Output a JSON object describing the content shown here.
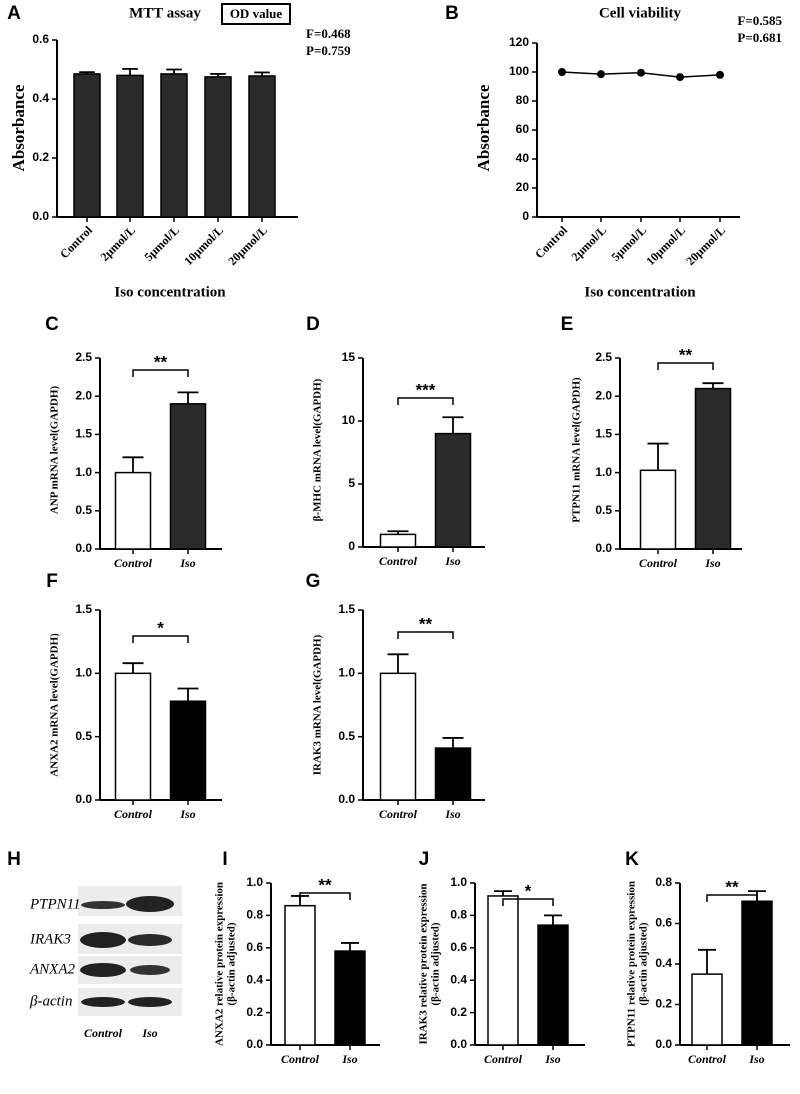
{
  "chart_data": [
    {
      "panel": "A",
      "type": "bar",
      "title": "MTT assay",
      "badge": "OD value",
      "annotations": [
        "F=0.468",
        "P=0.759"
      ],
      "categories": [
        "Control",
        "2μmol/L",
        "5μmol/L",
        "10μmol/L",
        "20μmol/L"
      ],
      "values": [
        0.485,
        0.48,
        0.485,
        0.475,
        0.478
      ],
      "errors": [
        0.006,
        0.022,
        0.015,
        0.01,
        0.012
      ],
      "colors": [
        "#2b2b2b",
        "#2b2b2b",
        "#2b2b2b",
        "#2b2b2b",
        "#2b2b2b"
      ],
      "ylabel": "Absorbance",
      "xlabel": "Iso concentration",
      "ylim": [
        0,
        0.6
      ],
      "yticks": [
        {
          "value": 0,
          "label": "0.0"
        },
        0.2,
        0.4,
        0.6
      ]
    },
    {
      "panel": "B",
      "type": "line",
      "title": "Cell viability",
      "annotations": [
        "F=0.585",
        "P=0.681"
      ],
      "categories": [
        "Control",
        "2μmol/L",
        "5μmol/L",
        "10μmol/L",
        "20μmol/L"
      ],
      "values": [
        100,
        98.5,
        99.5,
        96.5,
        98
      ],
      "color": "#000000",
      "ylabel": "Absorbance",
      "xlabel": "Iso concentration",
      "ylim": [
        0,
        120
      ],
      "yticks": [
        0,
        20,
        40,
        60,
        80,
        100,
        120
      ]
    },
    {
      "panel": "C",
      "type": "bar",
      "categories": [
        "Control",
        "Iso"
      ],
      "values": [
        1.0,
        1.9
      ],
      "errors": [
        0.2,
        0.15
      ],
      "colors": [
        "#ffffff",
        "#2b2b2b"
      ],
      "significance": "**",
      "ylabel": "ANP mRNA level(GAPDH)",
      "ylim": [
        0,
        2.5
      ],
      "yticks": [
        {
          "value": 0,
          "label": "0.0"
        },
        0.5,
        {
          "value": 1,
          "label": "1.0"
        },
        1.5,
        {
          "value": 2,
          "label": "2.0"
        },
        2.5
      ]
    },
    {
      "panel": "D",
      "type": "bar",
      "categories": [
        "Control",
        "Iso"
      ],
      "values": [
        1.0,
        9.0
      ],
      "errors": [
        0.25,
        1.3
      ],
      "colors": [
        "#ffffff",
        "#2b2b2b"
      ],
      "significance": "***",
      "ylabel": "β-MHC mRNA level(GAPDH)",
      "ylim": [
        0,
        15
      ],
      "yticks": [
        0,
        5,
        10,
        15
      ]
    },
    {
      "panel": "E",
      "type": "bar",
      "categories": [
        "Control",
        "Iso"
      ],
      "values": [
        1.03,
        2.1
      ],
      "errors": [
        0.35,
        0.07
      ],
      "colors": [
        "#ffffff",
        "#2b2b2b"
      ],
      "significance": "**",
      "ylabel": "PTPN11 mRNA level(GAPDH)",
      "ylim": [
        0,
        2.5
      ],
      "yticks": [
        {
          "value": 0,
          "label": "0.0"
        },
        0.5,
        {
          "value": 1,
          "label": "1.0"
        },
        1.5,
        {
          "value": 2,
          "label": "2.0"
        },
        2.5
      ]
    },
    {
      "panel": "F",
      "type": "bar",
      "categories": [
        "Control",
        "Iso"
      ],
      "values": [
        1.0,
        0.78
      ],
      "errors": [
        0.08,
        0.1
      ],
      "colors": [
        "#ffffff",
        "#000000"
      ],
      "significance": "*",
      "ylabel": "ANXA2 mRNA level(GAPDH)",
      "ylim": [
        0,
        1.5
      ],
      "yticks": [
        {
          "value": 0,
          "label": "0.0"
        },
        0.5,
        {
          "value": 1,
          "label": "1.0"
        },
        1.5
      ]
    },
    {
      "panel": "G",
      "type": "bar",
      "categories": [
        "Control",
        "Iso"
      ],
      "values": [
        1.0,
        0.41
      ],
      "errors": [
        0.15,
        0.08
      ],
      "colors": [
        "#ffffff",
        "#000000"
      ],
      "significance": "**",
      "ylabel": "IRAK3 mRNA level(GAPDH)",
      "ylim": [
        0,
        1.5
      ],
      "yticks": [
        {
          "value": 0,
          "label": "0.0"
        },
        0.5,
        {
          "value": 1,
          "label": "1.0"
        },
        1.5
      ]
    },
    {
      "panel": "I",
      "type": "bar",
      "categories": [
        "Control",
        "Iso"
      ],
      "values": [
        0.86,
        0.58
      ],
      "errors": [
        0.06,
        0.05
      ],
      "colors": [
        "#ffffff",
        "#000000"
      ],
      "significance": "**",
      "ylabel": [
        "ANXA2 relative protein expression",
        "(β-actin adjusted)"
      ],
      "ylim": [
        0,
        1
      ],
      "yticks": [
        {
          "value": 0,
          "label": "0.0"
        },
        0.2,
        0.4,
        0.6,
        0.8,
        {
          "value": 1,
          "label": "1.0"
        }
      ]
    },
    {
      "panel": "J",
      "type": "bar",
      "categories": [
        "Control",
        "Iso"
      ],
      "values": [
        0.92,
        0.74
      ],
      "errors": [
        0.03,
        0.06
      ],
      "colors": [
        "#ffffff",
        "#000000"
      ],
      "significance": "*",
      "ylabel": [
        "IRAK3 relative protein expression",
        "(β-actin adjusted)"
      ],
      "ylim": [
        0,
        1
      ],
      "yticks": [
        {
          "value": 0,
          "label": "0.0"
        },
        0.2,
        0.4,
        0.6,
        0.8,
        {
          "value": 1,
          "label": "1.0"
        }
      ]
    },
    {
      "panel": "K",
      "type": "bar",
      "categories": [
        "Control",
        "Iso"
      ],
      "values": [
        0.35,
        0.71
      ],
      "errors": [
        0.12,
        0.05
      ],
      "colors": [
        "#ffffff",
        "#000000"
      ],
      "significance": "**",
      "ylabel": [
        "PTPN11 relative protein expression",
        "(β-actin adjusted)"
      ],
      "ylim": [
        0,
        0.8
      ],
      "yticks": [
        {
          "value": 0,
          "label": "0.0"
        },
        0.2,
        0.4,
        0.6,
        0.8
      ]
    }
  ],
  "blot": {
    "panel": "H",
    "proteins": [
      "PTPN11",
      "IRAK3",
      "ANXA2",
      "β-actin"
    ],
    "lanes": [
      "Control",
      "Iso"
    ]
  }
}
